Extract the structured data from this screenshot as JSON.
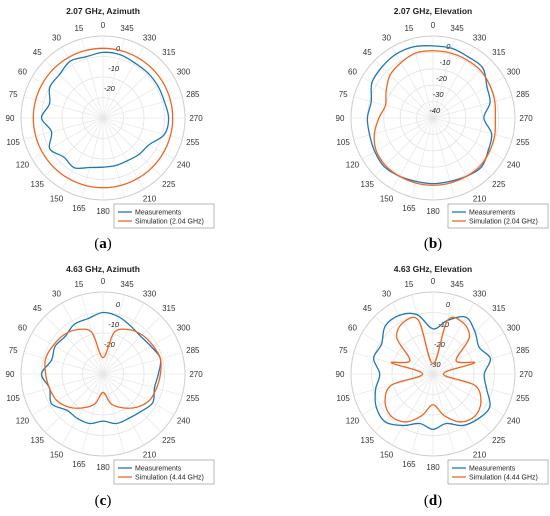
{
  "chart_data": [
    {
      "type": "polar",
      "panel": "a",
      "title": "2.07 GHz, Azimuth",
      "caption": "a",
      "angle_ticks": [
        "0",
        "15",
        "30",
        "45",
        "60",
        "75",
        "90",
        "105",
        "120",
        "135",
        "150",
        "165",
        "180",
        "195",
        "210",
        "225",
        "240",
        "255",
        "270",
        "285",
        "300",
        "315",
        "330",
        "345"
      ],
      "angle_direction": "clockwise_from_top_labels_increase_counterclockwise",
      "radial_ticks": [
        "0",
        "-10",
        "-20"
      ],
      "rlim": [
        -35,
        5
      ],
      "legend_placement": "bottom-right",
      "series": [
        {
          "name": "Measurements",
          "color": "#1f77b4",
          "r": [
            -3,
            -4,
            -3,
            -5,
            -5,
            -8,
            -5,
            -9,
            -5,
            -8,
            -7,
            -10,
            -11,
            -11,
            -11,
            -10,
            -9,
            -4,
            -3,
            -4,
            -4,
            -4,
            -4,
            -3
          ]
        },
        {
          "name": "Simulation (2.04 GHz)",
          "color": "#ee6622",
          "r": [
            -1,
            -1,
            -1,
            -1,
            -1,
            -1,
            -1,
            -1,
            -1,
            -1,
            -1,
            -1,
            -1,
            -1,
            -1,
            -1,
            -1,
            -1,
            -1,
            -1,
            -1,
            -1,
            -1,
            -1
          ]
        }
      ]
    },
    {
      "type": "polar",
      "panel": "b",
      "title": "2.07 GHz, Elevation",
      "caption": "b",
      "angle_ticks": [
        "0",
        "15",
        "30",
        "45",
        "60",
        "75",
        "90",
        "105",
        "120",
        "135",
        "150",
        "165",
        "180",
        "195",
        "210",
        "225",
        "240",
        "255",
        "270",
        "285",
        "300",
        "315",
        "330",
        "345"
      ],
      "radial_ticks": [
        "0",
        "-10",
        "-20",
        "-30",
        "-40"
      ],
      "rlim": [
        -45,
        5
      ],
      "legend_placement": "bottom-right",
      "series": [
        {
          "name": "Measurements",
          "color": "#1f77b4",
          "r": [
            -1,
            0,
            0,
            -1,
            -2,
            -6,
            -5,
            -5,
            -4,
            -3,
            -4,
            -5,
            -5,
            -5,
            -4,
            -3,
            -6,
            -8,
            -14,
            -9,
            -7,
            -2,
            -2,
            -1
          ]
        },
        {
          "name": "Simulation (2.04 GHz)",
          "color": "#ee6622",
          "r": [
            -4,
            -4,
            -6,
            -8,
            -12,
            -15,
            -12,
            -8,
            -5,
            -4,
            -4,
            -4,
            -4,
            -4,
            -4,
            -4,
            -5,
            -6,
            -7,
            -6,
            -5,
            -4,
            -4,
            -4
          ]
        }
      ]
    },
    {
      "type": "polar",
      "panel": "c",
      "title": "4.63 GHz, Azimuth",
      "caption": "c",
      "angle_ticks": [
        "0",
        "15",
        "30",
        "45",
        "60",
        "75",
        "90",
        "105",
        "120",
        "135",
        "150",
        "165",
        "180",
        "195",
        "210",
        "225",
        "240",
        "255",
        "270",
        "285",
        "300",
        "315",
        "330",
        "345"
      ],
      "radial_ticks": [
        "0",
        "-10",
        "-20"
      ],
      "rlim": [
        -35,
        5
      ],
      "legend_placement": "bottom-right",
      "series": [
        {
          "name": "Measurements",
          "color": "#1f77b4",
          "r": [
            -5,
            -7,
            -7,
            -9,
            -8,
            -9,
            -5,
            -8,
            -6,
            -10,
            -10,
            -10,
            -12,
            -10,
            -10,
            -9,
            -7,
            -9,
            -8,
            -6,
            -8,
            -9,
            -8,
            -6
          ]
        },
        {
          "name": "Simulation (4.44 GHz)",
          "color": "#ee6622",
          "r": [
            -27,
            -14,
            -10,
            -8,
            -7,
            -6,
            -7,
            -8,
            -9,
            -12,
            -16,
            -20,
            -26,
            -20,
            -16,
            -12,
            -9,
            -8,
            -7,
            -6,
            -7,
            -8,
            -10,
            -14
          ]
        }
      ]
    },
    {
      "type": "polar",
      "panel": "d",
      "title": "4.63 GHz, Elevation",
      "caption": "d",
      "angle_ticks": [
        "0",
        "15",
        "30",
        "45",
        "60",
        "75",
        "90",
        "105",
        "120",
        "135",
        "150",
        "165",
        "180",
        "195",
        "210",
        "225",
        "240",
        "255",
        "270",
        "285",
        "300",
        "315",
        "330",
        "345"
      ],
      "radial_ticks": [
        "0",
        "-10",
        "-20",
        "-30"
      ],
      "rlim": [
        -35,
        5
      ],
      "legend_placement": "bottom-right",
      "series": [
        {
          "name": "Measurements",
          "color": "#1f77b4",
          "r": [
            -13,
            -5,
            -2,
            -2,
            -6,
            -5,
            -9,
            -6,
            -3,
            -2,
            -6,
            -10,
            -8,
            -10,
            -6,
            -4,
            -3,
            -8,
            -10,
            -6,
            -9,
            -6,
            -3,
            -8
          ]
        },
        {
          "name": "Simulation (4.44 GHz)",
          "color": "#ee6622",
          "r": [
            -30,
            -8,
            -6,
            -10,
            -22,
            -14,
            -30,
            -14,
            -8,
            -6,
            -8,
            -14,
            -20,
            -14,
            -8,
            -6,
            -8,
            -14,
            -30,
            -14,
            -22,
            -10,
            -6,
            -8
          ]
        }
      ]
    }
  ]
}
